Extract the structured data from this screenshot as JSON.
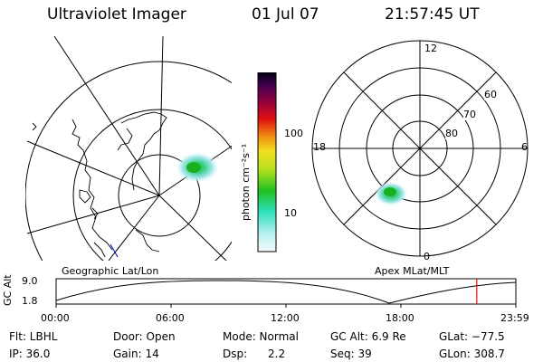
{
  "header": {
    "title": "Ultraviolet Imager",
    "date": "01 Jul 07",
    "time": "21:57:45 UT"
  },
  "colorbar": {
    "unit_label": "photon cm⁻²s⁻¹",
    "ticks": [
      "100",
      "10"
    ]
  },
  "polar_plot": {
    "mlt_labels": {
      "top": "12",
      "left": "18",
      "right": "6",
      "bottom": "0"
    },
    "lat_labels": [
      "80",
      "70",
      "60"
    ]
  },
  "timeline": {
    "left_title": "Geographic Lat/Lon",
    "right_title": "Apex MLat/MLT",
    "y_axis_label": "GC Alt",
    "y_ticks": [
      "9.0",
      "1.8"
    ],
    "x_ticks": [
      "00:00",
      "06:00",
      "12:00",
      "18:00",
      "23:59"
    ],
    "current_marker_hours": 21.96
  },
  "info_rows": [
    [
      "Flt: LBHL",
      "Door: Open",
      "Mode: Normal",
      "GC Alt: 6.9 Re",
      "GLat: −77.5"
    ],
    [
      "IP: 36.0",
      "Gain: 14",
      "Dsp:      2.2",
      "Seq: 39",
      "GLon: 308.7"
    ]
  ],
  "colors": {
    "marker": "#e01010",
    "coast": "#0000cc"
  }
}
